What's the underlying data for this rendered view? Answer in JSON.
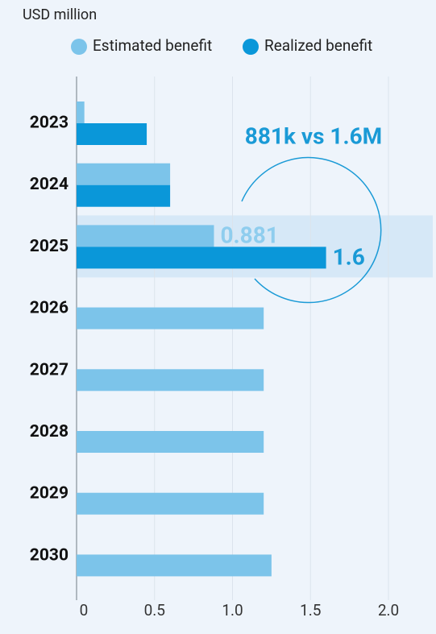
{
  "chart_data": {
    "type": "hbar",
    "subtitle": "USD million",
    "categories": [
      "2023",
      "2024",
      "2025",
      "2026",
      "2027",
      "2028",
      "2029",
      "2030"
    ],
    "series": [
      {
        "name": "Estimated benefit",
        "color": "#7cc4ea",
        "values": [
          0.05,
          0.6,
          0.881,
          1.2,
          1.2,
          1.2,
          1.2,
          1.25
        ]
      },
      {
        "name": "Realized benefit",
        "color": "#0a97d9",
        "values": [
          0.45,
          0.6,
          1.6,
          null,
          null,
          null,
          null,
          null
        ]
      }
    ],
    "xlim": [
      0,
      2.25
    ],
    "xticks": [
      0,
      0.5,
      {
        "value": 1,
        "label": "1.0"
      },
      1.5,
      {
        "value": 2,
        "label": "2.0"
      }
    ],
    "grid": true,
    "highlight_category": "2025",
    "annotation": "881k vs 1.6M",
    "annotation_color": "#1a9ad6"
  }
}
